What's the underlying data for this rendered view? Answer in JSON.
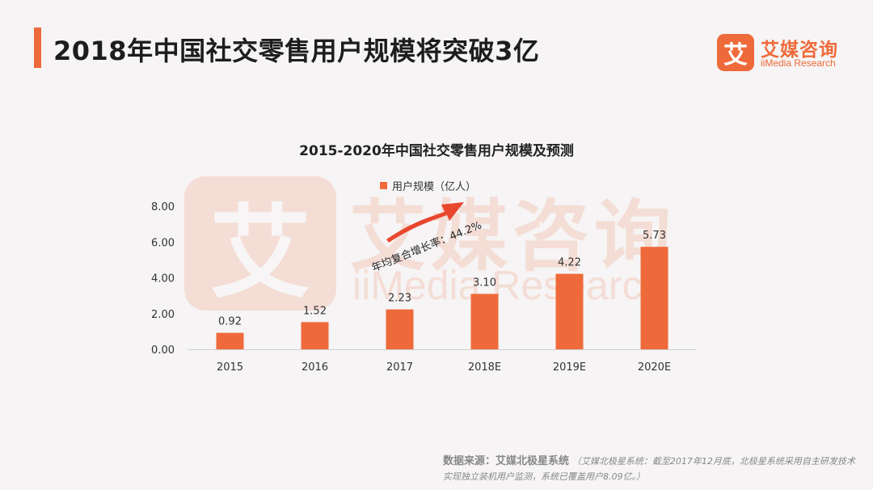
{
  "header": {
    "title": "2018年中国社交零售用户规模将突破3亿",
    "logo_mark": "艾",
    "logo_cn": "艾媒咨询",
    "logo_en": "iiMedia Research"
  },
  "watermark": {
    "mark": "艾",
    "cn": "艾媒咨询",
    "en": "iiMedia Research"
  },
  "colors": {
    "accent": "#ef6a3b",
    "bar": "#ef6a3b",
    "arrow": "#e8472d"
  },
  "chart_data": {
    "type": "bar",
    "title": "2015-2020年中国社交零售用户规模及预测",
    "categories": [
      "2015",
      "2016",
      "2017",
      "2018E",
      "2019E",
      "2020E"
    ],
    "series": [
      {
        "name": "用户规模（亿人）",
        "values": [
          0.92,
          1.52,
          2.23,
          3.1,
          4.22,
          5.73
        ]
      }
    ],
    "data_labels": [
      "0.92",
      "1.52",
      "2.23",
      "3.10",
      "4.22",
      "5.73"
    ],
    "y_ticks": [
      "0.00",
      "2.00",
      "4.00",
      "6.00",
      "8.00"
    ],
    "ylim": [
      0,
      8
    ],
    "grid": false,
    "legend_position": "top",
    "annotation": "年均复合增长率：44.2%"
  },
  "source": {
    "label": "数据来源：艾媒北极星系统",
    "note": "（艾媒北极星系统：截至2017年12月底，北极星系统采用自主研发技术实现独立装机用户监测，系统已覆盖用户8.09亿。）"
  }
}
